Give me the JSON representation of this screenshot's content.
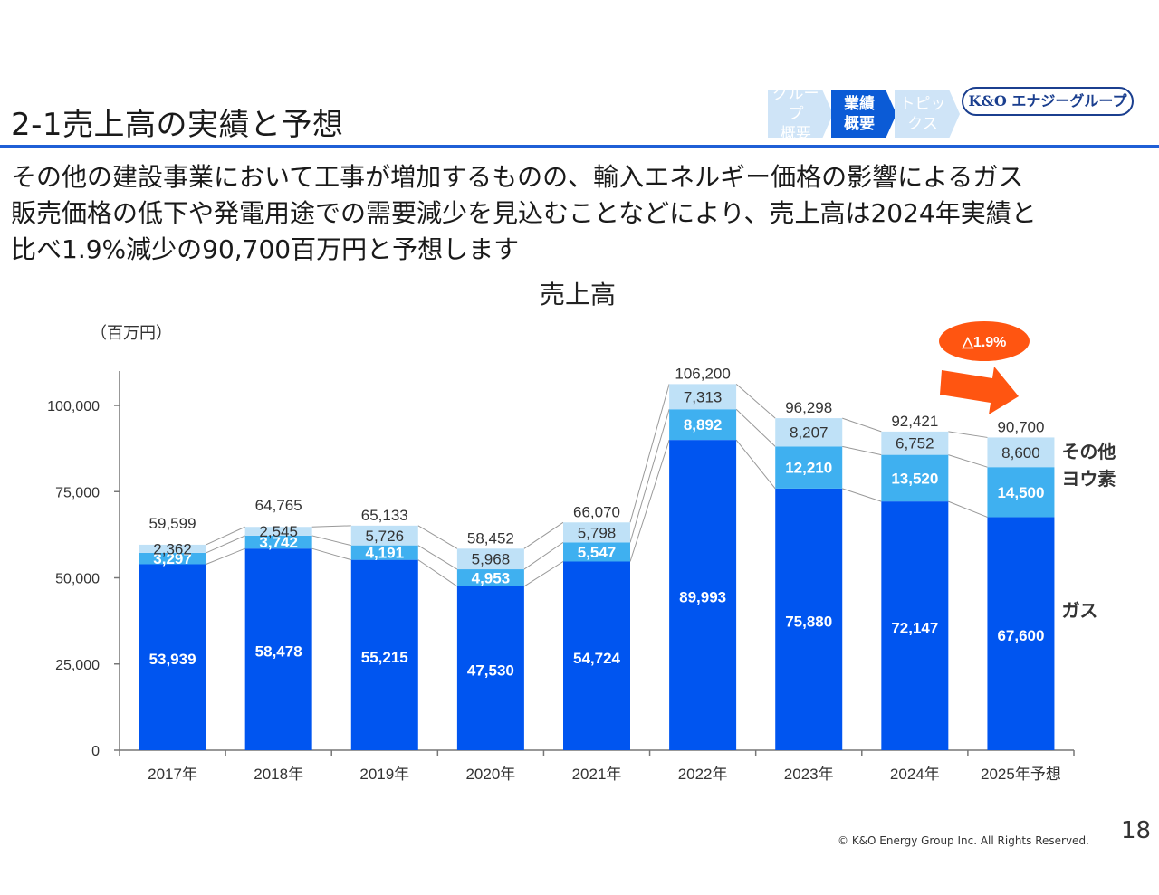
{
  "header": {
    "title": "2-1売上高の実績と予想",
    "nav": [
      {
        "line1": "グループ",
        "line2": "概要",
        "state": "light"
      },
      {
        "line1": "業績",
        "line2": "概要",
        "state": "active"
      },
      {
        "line1": "トピッ",
        "line2": "クス",
        "state": "light"
      }
    ],
    "logo": "K&O エナジーグループ"
  },
  "subtitle": [
    "その他の建設事業において工事が増加するものの、輸入エネルギー価格の影響によるガス",
    "販売価格の低下や発電用途での需要減少を見込むことなどにより、売上高は2024年実績と",
    "比べ1.9%減少の90,700百万円と予想します"
  ],
  "footer": {
    "copyright": "© K&O Energy Group Inc. All Rights Reserved.",
    "page": "18"
  },
  "colors": {
    "gas": "#0055f0",
    "iodine": "#3fb0f0",
    "other": "#bfe1f7",
    "axis": "#777777",
    "callout": "#ff5511",
    "rule": "#1f5fd6"
  },
  "chart_data": {
    "type": "bar",
    "stacked": true,
    "title": "売上高",
    "ylabel": "（百万円）",
    "ylim": [
      0,
      110000
    ],
    "yticks": [
      0,
      25000,
      50000,
      75000,
      100000
    ],
    "ytick_labels": [
      "0",
      "25,000",
      "50,000",
      "75,000",
      "100,000"
    ],
    "categories": [
      "2017年",
      "2018年",
      "2019年",
      "2020年",
      "2021年",
      "2022年",
      "2023年",
      "2024年",
      "2025年予想"
    ],
    "series": [
      {
        "name": "ガス",
        "values": [
          53939,
          58478,
          55215,
          47530,
          54724,
          89993,
          75880,
          72147,
          67600
        ],
        "labels": [
          "53,939",
          "58,478",
          "55,215",
          "47,530",
          "54,724",
          "89,993",
          "75,880",
          "72,147",
          "67,600"
        ]
      },
      {
        "name": "ヨウ素",
        "values": [
          3297,
          3742,
          4191,
          4953,
          5547,
          8892,
          12210,
          13520,
          14500
        ],
        "labels": [
          "3,297",
          "3,742",
          "4,191",
          "4,953",
          "5,547",
          "8,892",
          "12,210",
          "13,520",
          "14,500"
        ]
      },
      {
        "name": "その他",
        "values": [
          2362,
          2545,
          5726,
          5968,
          5798,
          7313,
          8207,
          6752,
          8600
        ],
        "labels": [
          "2,362",
          "2,545",
          "5,726",
          "5,968",
          "5,798",
          "7,313",
          "8,207",
          "6,752",
          "8,600"
        ]
      }
    ],
    "totals": [
      59599,
      64765,
      65133,
      58452,
      66070,
      106200,
      96298,
      92421,
      90700
    ],
    "total_labels": [
      "59,599",
      "64,765",
      "65,133",
      "58,452",
      "66,070",
      "106,200",
      "96,298",
      "92,421",
      "90,700"
    ],
    "legend": [
      "その他",
      "ヨウ素",
      "ガス"
    ],
    "annotation": "△1.9%"
  }
}
